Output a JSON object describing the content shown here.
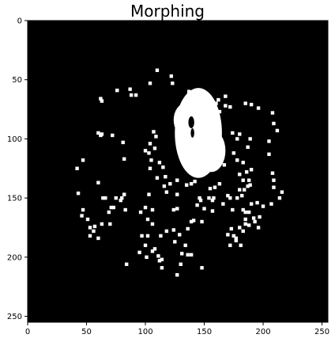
{
  "chart_data": {
    "type": "heatmap",
    "title": "Morphing",
    "xlabel": "",
    "ylabel": "",
    "xlim": [
      0,
      255
    ],
    "ylim": [
      255,
      0
    ],
    "xticks": [
      0,
      50,
      100,
      150,
      200,
      250
    ],
    "yticks": [
      0,
      50,
      100,
      150,
      200,
      250
    ],
    "grid": false,
    "colormap": "binary (black background, white pixels)",
    "background_color": "#000000",
    "foreground_color": "#ffffff",
    "blobs": [
      {
        "x": 145,
        "y": 95,
        "rx": 20,
        "ry": 38
      },
      {
        "x": 134,
        "y": 84,
        "rx": 10,
        "ry": 14
      },
      {
        "x": 156,
        "y": 110,
        "rx": 12,
        "ry": 18
      }
    ],
    "holes": [
      {
        "x": 139,
        "y": 86,
        "rx": 2.5,
        "ry": 5
      },
      {
        "x": 140,
        "y": 95,
        "rx": 1.5,
        "ry": 4
      }
    ],
    "points": [
      [
        110,
        42
      ],
      [
        122,
        47
      ],
      [
        104,
        53
      ],
      [
        123,
        53
      ],
      [
        76,
        59
      ],
      [
        87,
        58
      ],
      [
        62,
        66
      ],
      [
        63,
        68
      ],
      [
        88,
        63
      ],
      [
        92,
        63
      ],
      [
        168,
        64
      ],
      [
        162,
        67
      ],
      [
        168,
        72
      ],
      [
        172,
        73
      ],
      [
        185,
        70
      ],
      [
        190,
        71
      ],
      [
        196,
        74
      ],
      [
        208,
        78
      ],
      [
        209,
        87
      ],
      [
        212,
        93
      ],
      [
        205,
        102
      ],
      [
        205,
        113
      ],
      [
        208,
        129
      ],
      [
        209,
        135
      ],
      [
        209,
        141
      ],
      [
        207,
        155
      ],
      [
        200,
        157
      ],
      [
        197,
        166
      ],
      [
        185,
        168
      ],
      [
        193,
        170
      ],
      [
        183,
        178
      ],
      [
        177,
        186
      ],
      [
        181,
        190
      ],
      [
        72,
        97
      ],
      [
        60,
        95
      ],
      [
        63,
        96
      ],
      [
        62,
        97
      ],
      [
        81,
        103
      ],
      [
        108,
        108
      ],
      [
        103,
        112
      ],
      [
        100,
        110
      ],
      [
        104,
        104
      ],
      [
        107,
        94
      ],
      [
        109,
        98
      ],
      [
        105,
        118
      ],
      [
        104,
        125
      ],
      [
        110,
        133
      ],
      [
        117,
        132
      ],
      [
        121,
        138
      ],
      [
        116,
        140
      ],
      [
        118,
        145
      ],
      [
        127,
        147
      ],
      [
        127,
        135
      ],
      [
        112,
        120
      ],
      [
        115,
        124
      ],
      [
        82,
        117
      ],
      [
        47,
        118
      ],
      [
        42,
        125
      ],
      [
        60,
        137
      ],
      [
        43,
        146
      ],
      [
        64,
        150
      ],
      [
        66,
        150
      ],
      [
        75,
        150
      ],
      [
        73,
        158
      ],
      [
        69,
        162
      ],
      [
        71,
        158
      ],
      [
        47,
        160
      ],
      [
        46,
        165
      ],
      [
        51,
        168
      ],
      [
        53,
        175
      ],
      [
        57,
        174
      ],
      [
        63,
        172
      ],
      [
        56,
        178
      ],
      [
        60,
        184
      ],
      [
        53,
        182
      ],
      [
        70,
        172
      ],
      [
        80,
        150
      ],
      [
        79,
        152
      ],
      [
        82,
        147
      ],
      [
        83,
        160
      ],
      [
        103,
        147
      ],
      [
        100,
        158
      ],
      [
        106,
        160
      ],
      [
        102,
        168
      ],
      [
        96,
        162
      ],
      [
        106,
        172
      ],
      [
        97,
        182
      ],
      [
        100,
        190
      ],
      [
        106,
        195
      ],
      [
        102,
        182
      ],
      [
        95,
        196
      ],
      [
        101,
        200
      ],
      [
        108,
        193
      ],
      [
        111,
        199
      ],
      [
        114,
        202
      ],
      [
        113,
        182
      ],
      [
        118,
        178
      ],
      [
        124,
        177
      ],
      [
        125,
        187
      ],
      [
        129,
        181
      ],
      [
        134,
        190
      ],
      [
        136,
        176
      ],
      [
        139,
        170
      ],
      [
        141,
        169
      ],
      [
        148,
        170
      ],
      [
        150,
        159
      ],
      [
        144,
        156
      ],
      [
        146,
        150
      ],
      [
        157,
        152
      ],
      [
        158,
        150
      ],
      [
        166,
        155
      ],
      [
        172,
        150
      ],
      [
        178,
        150
      ],
      [
        174,
        160
      ],
      [
        183,
        160
      ],
      [
        185,
        162
      ],
      [
        188,
        162
      ],
      [
        190,
        155
      ],
      [
        192,
        167
      ],
      [
        196,
        175
      ],
      [
        188,
        173
      ],
      [
        185,
        172
      ],
      [
        180,
        175
      ],
      [
        173,
        176
      ],
      [
        175,
        182
      ],
      [
        172,
        190
      ],
      [
        177,
        184
      ],
      [
        131,
        197
      ],
      [
        136,
        198
      ],
      [
        130,
        206
      ],
      [
        127,
        215
      ],
      [
        139,
        198
      ],
      [
        112,
        203
      ],
      [
        114,
        209
      ],
      [
        84,
        206
      ],
      [
        148,
        209
      ],
      [
        170,
        181
      ],
      [
        161,
        110
      ],
      [
        164,
        118
      ],
      [
        167,
        122
      ],
      [
        175,
        112
      ],
      [
        178,
        118
      ],
      [
        183,
        120
      ],
      [
        178,
        100
      ],
      [
        174,
        95
      ],
      [
        180,
        96
      ],
      [
        189,
        100
      ],
      [
        187,
        107
      ],
      [
        183,
        135
      ],
      [
        187,
        140
      ],
      [
        190,
        126
      ],
      [
        189,
        139
      ],
      [
        195,
        154
      ],
      [
        182,
        148
      ],
      [
        180,
        143
      ],
      [
        184,
        143
      ],
      [
        155,
        142
      ],
      [
        159,
        141
      ],
      [
        163,
        138
      ],
      [
        142,
        136
      ],
      [
        135,
        139
      ],
      [
        139,
        138
      ],
      [
        147,
        152
      ],
      [
        154,
        150
      ],
      [
        216,
        145
      ],
      [
        214,
        150
      ],
      [
        180,
        130
      ],
      [
        186,
        128
      ],
      [
        170,
        148
      ],
      [
        157,
        161
      ],
      [
        188,
        135
      ],
      [
        159,
        73
      ],
      [
        161,
        80
      ],
      [
        163,
        77
      ],
      [
        154,
        67
      ],
      [
        149,
        61
      ],
      [
        137,
        60
      ],
      [
        160,
        70
      ],
      [
        124,
        160
      ],
      [
        127,
        159
      ]
    ]
  }
}
